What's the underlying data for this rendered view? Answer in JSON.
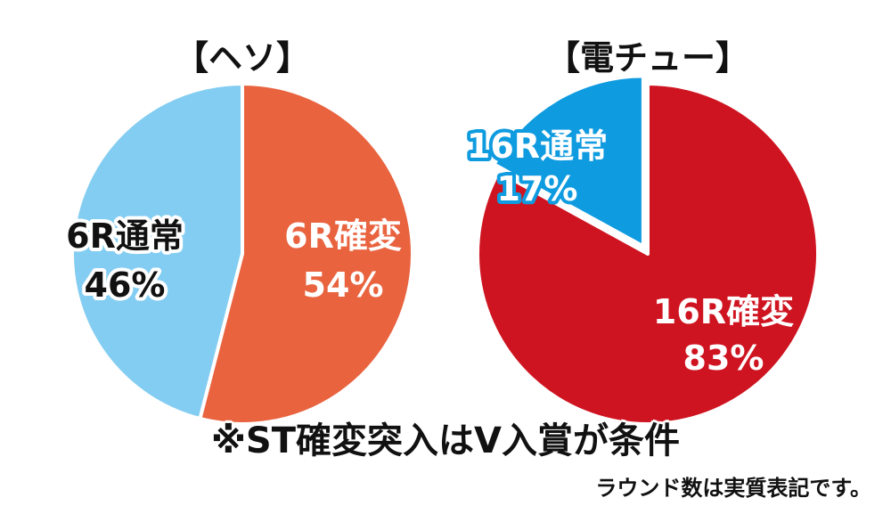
{
  "colors": {
    "hesoNormal": "#84cdf2",
    "hesoKakuhen": "#e9633f",
    "denchuNormal": "#0f9be0",
    "denchuKakuhen": "#cf1421",
    "text": "#111111",
    "white": "#ffffff"
  },
  "chart_data": [
    {
      "type": "pie",
      "title": "【ヘソ】",
      "slices": [
        {
          "label": "6R通常",
          "value": 46,
          "value_label": "46%",
          "color": "#84cdf2"
        },
        {
          "label": "6R確変",
          "value": 54,
          "value_label": "54%",
          "color": "#e9633f"
        }
      ]
    },
    {
      "type": "pie",
      "title": "【電チュー】",
      "slices": [
        {
          "label": "16R通常",
          "value": 17,
          "value_label": "17%",
          "color": "#0f9be0"
        },
        {
          "label": "16R確変",
          "value": 83,
          "value_label": "83%",
          "color": "#cf1421"
        }
      ]
    }
  ],
  "footnote": "※ST確変突入はV入賞が条件",
  "note": "ラウンド数は実質表記です。"
}
